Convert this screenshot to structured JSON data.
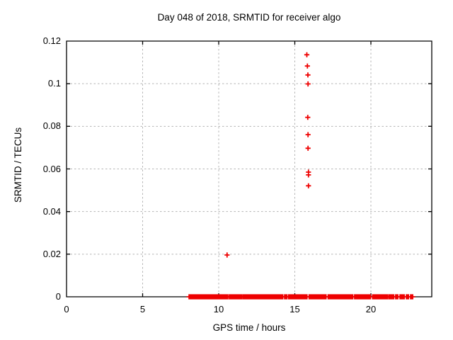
{
  "colors": {
    "background": "#ffffff",
    "frame": "#000000",
    "grid": "#b4b4b4",
    "text": "#000000",
    "marker": "#ee0000"
  },
  "chart_data": {
    "type": "scatter",
    "title": "Day 048 of 2018, SRMTID for receiver algo",
    "xlabel": "GPS time / hours",
    "ylabel": "SRMTID / TECUs",
    "xlim": [
      0,
      24
    ],
    "ylim": [
      0,
      0.12
    ],
    "x_ticks": [
      0,
      5,
      10,
      15,
      20
    ],
    "x_tick_labels": [
      "0",
      "5",
      "10",
      "15",
      "20"
    ],
    "y_ticks": [
      0,
      0.02,
      0.04,
      0.06,
      0.08,
      0.1,
      0.12
    ],
    "y_tick_labels": [
      "0",
      "0.02",
      "0.04",
      "0.06",
      "0.08",
      "0.1",
      "0.12"
    ],
    "grid": "dashed",
    "legend": "none",
    "marker": "plus",
    "series": [
      {
        "name": "SRMTID",
        "color": "#ee0000",
        "points": [
          [
            10.55,
            0.0196
          ],
          [
            15.79,
            0.1136
          ],
          [
            15.83,
            0.1083
          ],
          [
            15.86,
            0.1041
          ],
          [
            15.87,
            0.0999
          ],
          [
            15.85,
            0.0842
          ],
          [
            15.87,
            0.0761
          ],
          [
            15.87,
            0.0697
          ],
          [
            15.9,
            0.0585
          ],
          [
            15.9,
            0.0572
          ],
          [
            15.9,
            0.0521
          ]
        ],
        "zero_value_runs_hours": [
          [
            8.05,
            10.6
          ],
          [
            10.7,
            11.53
          ],
          [
            11.62,
            14.21
          ],
          [
            14.33,
            14.49
          ],
          [
            14.6,
            15.06
          ],
          [
            15.14,
            15.8
          ],
          [
            15.94,
            17.05
          ],
          [
            17.19,
            18.81
          ],
          [
            18.93,
            19.97
          ],
          [
            20.11,
            21.08
          ],
          [
            21.17,
            21.5
          ],
          [
            21.63,
            21.77
          ],
          [
            21.91,
            22.19
          ],
          [
            22.33,
            22.47
          ],
          [
            22.61,
            22.75
          ]
        ]
      }
    ]
  }
}
